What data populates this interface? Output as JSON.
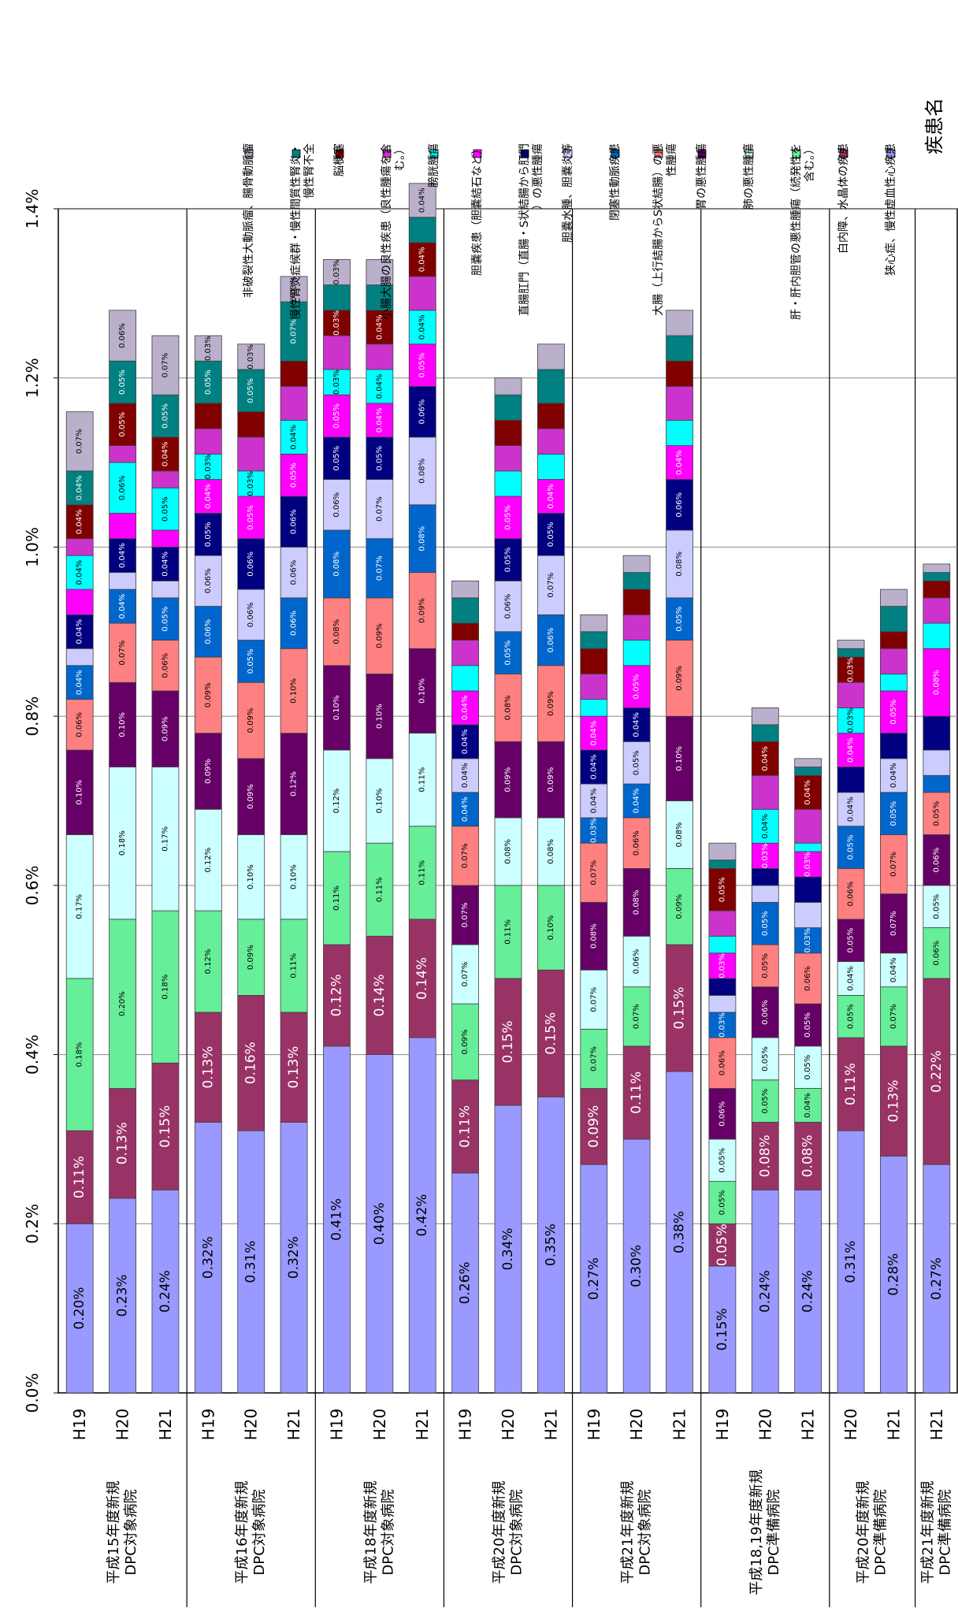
{
  "legend_title": "疾患名",
  "chart_data": {
    "type": "bar",
    "orientation": "horizontal-stacked",
    "xlim": [
      0,
      1.4
    ],
    "x_ticks": [
      "0.0%",
      "0.2%",
      "0.4%",
      "0.6%",
      "0.8%",
      "1.0%",
      "1.2%",
      "1.4%"
    ],
    "grid": true,
    "legend_position": "right",
    "series": [
      {
        "name": "狭心症、慢性虚血性心疾患",
        "color": "#9999ff"
      },
      {
        "name": "白内障、水晶体の疾患",
        "color": "#993366"
      },
      {
        "name": "肝・肝内胆管の悪性腫瘍（続発性を含む。）",
        "color": "#66ee99"
      },
      {
        "name": "肺の悪性腫瘍",
        "color": "#ccffff"
      },
      {
        "name": "胃の悪性腫瘍",
        "color": "#660066"
      },
      {
        "name": "大腸（上行結腸からS状結腸）の悪性腫瘍",
        "color": "#ff8080"
      },
      {
        "name": "閉塞性動脈疾患",
        "color": "#0066cc"
      },
      {
        "name": "胆嚢水腫、胆嚢炎等",
        "color": "#ccccff"
      },
      {
        "name": "直腸肛門（直腸・S状結腸から肛門）の悪性腫瘍",
        "color": "#000080"
      },
      {
        "name": "胆嚢疾患（胆嚢結石など）",
        "color": "#ff00ff"
      },
      {
        "name": "膀胱腫瘍",
        "color": "#00ffff"
      },
      {
        "name": "小腸大腸の良性疾患（良性腫瘍を含む。）",
        "color": "#cc33cc"
      },
      {
        "name": "脳梗塞",
        "color": "#800000"
      },
      {
        "name": "慢性腎炎症候群・慢性間質性腎炎・慢性腎不全",
        "color": "#008080"
      },
      {
        "name": "非破裂性大動脈瘤、腸骨動脈瘤",
        "color": "#bbb0cc"
      }
    ],
    "groups": [
      {
        "label": "平成15年度新規DPC対象病院",
        "bars": [
          {
            "year": "H19",
            "values": [
              0.2,
              0.11,
              0.18,
              0.17,
              0.1,
              0.06,
              0.04,
              0.02,
              0.04,
              0.03,
              0.04,
              0.02,
              0.04,
              0.04,
              0.07
            ],
            "labels": [
              "0.20%",
              "0.11%",
              "0.18%",
              "0.17%",
              "0.10%",
              "0.06%",
              "0.04%",
              "",
              "0.04%",
              "",
              "0.04%",
              "",
              "0.04%",
              "0.04%",
              "0.07%"
            ]
          },
          {
            "year": "H20",
            "values": [
              0.23,
              0.13,
              0.2,
              0.18,
              0.1,
              0.07,
              0.04,
              0.02,
              0.04,
              0.03,
              0.06,
              0.02,
              0.05,
              0.05,
              0.06
            ],
            "labels": [
              "0.23%",
              "0.13%",
              "0.20%",
              "0.18%",
              "0.10%",
              "0.07%",
              "0.04%",
              "",
              "0.04%",
              "",
              "0.06%",
              "",
              "0.05%",
              "0.05%",
              "0.06%"
            ]
          },
          {
            "year": "H21",
            "values": [
              0.24,
              0.15,
              0.18,
              0.17,
              0.09,
              0.06,
              0.05,
              0.02,
              0.04,
              0.02,
              0.05,
              0.02,
              0.04,
              0.05,
              0.07
            ],
            "labels": [
              "0.24%",
              "0.15%",
              "0.18%",
              "0.17%",
              "0.09%",
              "0.06%",
              "0.05%",
              "",
              "0.04%",
              "",
              "0.05%",
              "",
              "0.04%",
              "0.05%",
              "0.07%"
            ]
          }
        ]
      },
      {
        "label": "平成16年度新規DPC対象病院",
        "bars": [
          {
            "year": "H19",
            "values": [
              0.32,
              0.13,
              0.12,
              0.12,
              0.09,
              0.09,
              0.06,
              0.06,
              0.05,
              0.04,
              0.03,
              0.03,
              0.03,
              0.05,
              0.03
            ],
            "labels": [
              "0.32%",
              "0.13%",
              "0.12%",
              "0.12%",
              "0.09%",
              "0.09%",
              "0.06%",
              "0.06%",
              "0.05%",
              "0.04%",
              "0.03%",
              "",
              "",
              "0.05%",
              "0.03%"
            ]
          },
          {
            "year": "H20",
            "values": [
              0.31,
              0.16,
              0.09,
              0.1,
              0.09,
              0.09,
              0.05,
              0.06,
              0.06,
              0.05,
              0.03,
              0.04,
              0.03,
              0.05,
              0.03
            ],
            "labels": [
              "0.31%",
              "0.16%",
              "0.09%",
              "0.10%",
              "0.09%",
              "0.09%",
              "0.05%",
              "0.06%",
              "0.06%",
              "0.05%",
              "0.03%",
              "",
              "",
              "0.05%",
              "0.03%"
            ]
          },
          {
            "year": "H21",
            "values": [
              0.32,
              0.13,
              0.11,
              0.1,
              0.12,
              0.1,
              0.06,
              0.06,
              0.06,
              0.05,
              0.04,
              0.04,
              0.03,
              0.07,
              0.03
            ],
            "labels": [
              "0.32%",
              "0.13%",
              "0.11%",
              "0.10%",
              "0.12%",
              "0.10%",
              "0.06%",
              "0.06%",
              "0.06%",
              "0.05%",
              "0.04%",
              "",
              "",
              "0.07%",
              "0.03%"
            ]
          }
        ]
      },
      {
        "label": "平成18年度新規DPC対象病院",
        "bars": [
          {
            "year": "H19",
            "values": [
              0.41,
              0.12,
              0.11,
              0.12,
              0.1,
              0.08,
              0.08,
              0.06,
              0.05,
              0.05,
              0.03,
              0.04,
              0.03,
              0.03,
              0.03
            ],
            "labels": [
              "0.41%",
              "0.12%",
              "0.11%",
              "0.12%",
              "0.10%",
              "0.08%",
              "0.08%",
              "0.06%",
              "0.05%",
              "0.05%",
              "0.03%",
              "",
              "0.03%",
              "",
              "0.03%"
            ]
          },
          {
            "year": "H20",
            "values": [
              0.4,
              0.14,
              0.11,
              0.1,
              0.1,
              0.09,
              0.07,
              0.07,
              0.05,
              0.04,
              0.04,
              0.03,
              0.04,
              0.03,
              0.03
            ],
            "labels": [
              "0.40%",
              "0.14%",
              "0.11%",
              "0.10%",
              "0.10%",
              "0.09%",
              "0.07%",
              "0.07%",
              "0.05%",
              "0.04%",
              "0.04%",
              "",
              "0.04%",
              "",
              ""
            ]
          },
          {
            "year": "H21",
            "values": [
              0.42,
              0.14,
              0.11,
              0.11,
              0.1,
              0.09,
              0.08,
              0.08,
              0.06,
              0.05,
              0.04,
              0.04,
              0.04,
              0.03,
              0.04
            ],
            "labels": [
              "0.42%",
              "0.14%",
              "0.11%",
              "0.11%",
              "0.10%",
              "0.09%",
              "0.08%",
              "0.08%",
              "0.06%",
              "0.05%",
              "0.04%",
              "",
              "0.04%",
              "",
              "0.04%"
            ]
          }
        ]
      },
      {
        "label": "平成20年度新規DPC対象病院",
        "bars": [
          {
            "year": "H19",
            "values": [
              0.26,
              0.11,
              0.09,
              0.07,
              0.07,
              0.07,
              0.04,
              0.04,
              0.04,
              0.04,
              0.03,
              0.03,
              0.02,
              0.03,
              0.02
            ],
            "labels": [
              "0.26%",
              "0.11%",
              "0.09%",
              "0.07%",
              "0.07%",
              "0.07%",
              "0.04%",
              "0.04%",
              "0.04%",
              "0.04%",
              "",
              "",
              "",
              "",
              ""
            ]
          },
          {
            "year": "H20",
            "values": [
              0.34,
              0.15,
              0.11,
              0.08,
              0.09,
              0.08,
              0.05,
              0.06,
              0.05,
              0.05,
              0.03,
              0.03,
              0.03,
              0.03,
              0.02
            ],
            "labels": [
              "0.34%",
              "0.15%",
              "0.11%",
              "0.08%",
              "0.09%",
              "0.08%",
              "0.05%",
              "0.06%",
              "0.05%",
              "0.05%",
              "",
              "",
              "",
              "",
              ""
            ]
          },
          {
            "year": "H21",
            "values": [
              0.35,
              0.15,
              0.1,
              0.08,
              0.09,
              0.09,
              0.06,
              0.07,
              0.05,
              0.04,
              0.03,
              0.03,
              0.03,
              0.04,
              0.03
            ],
            "labels": [
              "0.35%",
              "0.15%",
              "0.10%",
              "0.08%",
              "0.09%",
              "0.09%",
              "0.06%",
              "0.07%",
              "0.05%",
              "0.04%",
              "",
              "",
              "",
              "",
              ""
            ]
          }
        ]
      },
      {
        "label": "平成21年度新規DPC対象病院",
        "bars": [
          {
            "year": "H19",
            "values": [
              0.27,
              0.09,
              0.07,
              0.07,
              0.08,
              0.07,
              0.03,
              0.04,
              0.04,
              0.04,
              0.02,
              0.03,
              0.03,
              0.02,
              0.02
            ],
            "labels": [
              "0.27%",
              "0.09%",
              "0.07%",
              "0.07%",
              "0.08%",
              "0.07%",
              "0.03%",
              "0.04%",
              "0.04%",
              "0.04%",
              "",
              "",
              "",
              "",
              ""
            ]
          },
          {
            "year": "H20",
            "values": [
              0.3,
              0.11,
              0.07,
              0.06,
              0.08,
              0.06,
              0.04,
              0.05,
              0.04,
              0.05,
              0.03,
              0.03,
              0.03,
              0.02,
              0.02
            ],
            "labels": [
              "0.30%",
              "0.11%",
              "0.07%",
              "0.06%",
              "0.08%",
              "0.06%",
              "0.04%",
              "0.05%",
              "0.04%",
              "0.05%",
              "",
              "",
              "",
              "",
              ""
            ]
          },
          {
            "year": "H21",
            "values": [
              0.38,
              0.15,
              0.09,
              0.08,
              0.1,
              0.09,
              0.05,
              0.08,
              0.06,
              0.04,
              0.03,
              0.04,
              0.03,
              0.03,
              0.03
            ],
            "labels": [
              "0.38%",
              "0.15%",
              "0.09%",
              "0.08%",
              "0.10%",
              "0.09%",
              "0.05%",
              "0.08%",
              "0.06%",
              "0.04%",
              "",
              "",
              "",
              "",
              ""
            ]
          }
        ]
      },
      {
        "label": "平成18,19年度新規DPC準備病院",
        "bars": [
          {
            "year": "H19",
            "values": [
              0.15,
              0.05,
              0.05,
              0.05,
              0.06,
              0.06,
              0.03,
              0.02,
              0.02,
              0.03,
              0.02,
              0.03,
              0.05,
              0.01,
              0.02
            ],
            "labels": [
              "0.15%",
              "0.05%",
              "0.05%",
              "0.05%",
              "0.06%",
              "0.06%",
              "0.03%",
              "",
              "",
              "0.03%",
              "",
              "",
              "0.05%",
              "",
              ""
            ]
          },
          {
            "year": "H20",
            "values": [
              0.24,
              0.08,
              0.05,
              0.05,
              0.06,
              0.05,
              0.05,
              0.02,
              0.02,
              0.03,
              0.04,
              0.04,
              0.04,
              0.02,
              0.02
            ],
            "labels": [
              "0.24%",
              "0.08%",
              "0.05%",
              "0.05%",
              "0.06%",
              "0.05%",
              "0.05%",
              "",
              "",
              "0.03%",
              "0.04%",
              "",
              "0.04%",
              "",
              ""
            ]
          },
          {
            "year": "H21",
            "values": [
              0.24,
              0.08,
              0.04,
              0.05,
              0.05,
              0.06,
              0.03,
              0.03,
              0.03,
              0.03,
              0.01,
              0.04,
              0.04,
              0.01,
              0.01
            ],
            "labels": [
              "0.24%",
              "0.08%",
              "0.04%",
              "0.05%",
              "0.05%",
              "0.06%",
              "0.03%",
              "",
              "",
              "0.03%",
              "",
              "",
              "0.04%",
              "",
              ""
            ]
          }
        ]
      },
      {
        "label": "平成20年度新規DPC準備病院",
        "bars": [
          {
            "year": "H20",
            "values": [
              0.31,
              0.11,
              0.05,
              0.04,
              0.05,
              0.06,
              0.05,
              0.04,
              0.03,
              0.04,
              0.03,
              0.03,
              0.03,
              0.01,
              0.01
            ],
            "labels": [
              "0.31%",
              "0.11%",
              "0.05%",
              "0.04%",
              "0.05%",
              "0.06%",
              "0.05%",
              "0.04%",
              "",
              "0.04%",
              "0.03%",
              "",
              "0.03%",
              "",
              ""
            ]
          },
          {
            "year": "H21",
            "values": [
              0.28,
              0.13,
              0.07,
              0.04,
              0.07,
              0.07,
              0.05,
              0.04,
              0.03,
              0.05,
              0.02,
              0.03,
              0.02,
              0.03,
              0.02
            ],
            "labels": [
              "0.28%",
              "0.13%",
              "0.07%",
              "0.04%",
              "0.07%",
              "0.07%",
              "0.05%",
              "0.04%",
              "",
              "0.05%",
              "",
              "",
              "",
              "",
              ""
            ]
          }
        ]
      },
      {
        "label": "平成21年度新規DPC準備病院",
        "bars": [
          {
            "year": "H21",
            "values": [
              0.27,
              0.22,
              0.06,
              0.05,
              0.06,
              0.05,
              0.02,
              0.03,
              0.04,
              0.08,
              0.03,
              0.03,
              0.02,
              0.01,
              0.01
            ],
            "labels": [
              "0.27%",
              "0.22%",
              "0.06%",
              "0.05%",
              "0.06%",
              "0.05%",
              "",
              "",
              "",
              "0.08%",
              "",
              "",
              "",
              "",
              ""
            ]
          }
        ]
      }
    ]
  }
}
